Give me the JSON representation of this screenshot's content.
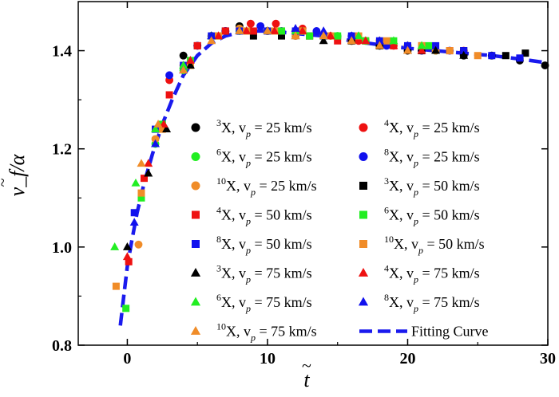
{
  "chart_data": {
    "type": "scatter",
    "xlabel": "t",
    "ylabel": "v_f/α",
    "xlim": [
      -3.5,
      30
    ],
    "ylim": [
      0.8,
      1.5
    ],
    "xticks": [
      0,
      10,
      20,
      30
    ],
    "yticks": [
      0.8,
      1.0,
      1.2,
      1.4
    ],
    "xtick_labels": [
      "0",
      "10",
      "20",
      "30"
    ],
    "ytick_labels": [
      "0.8",
      "1.0",
      "1.2",
      "1.4"
    ],
    "grid": false,
    "legend_position": "inside-lower-right",
    "series": [
      {
        "label": {
          "sup": "3",
          "text": "X,  v",
          "sub": "p",
          "tail": " = 25 km/s"
        },
        "color": "#000000",
        "marker": "circle",
        "points": [
          [
            4,
            1.39
          ],
          [
            6,
            1.43
          ],
          [
            8,
            1.45
          ],
          [
            10,
            1.44
          ],
          [
            12,
            1.44
          ],
          [
            14,
            1.43
          ],
          [
            16,
            1.42
          ],
          [
            18,
            1.41
          ],
          [
            20,
            1.4
          ],
          [
            22,
            1.4
          ],
          [
            24,
            1.39
          ],
          [
            26,
            1.39
          ],
          [
            28,
            1.38
          ],
          [
            29.8,
            1.37
          ]
        ]
      },
      {
        "label": {
          "sup": "4",
          "text": "X,  v",
          "sub": "p",
          "tail": " = 25 km/s"
        },
        "color": "#ee1111",
        "marker": "circle",
        "points": [
          [
            3,
            1.34
          ],
          [
            5,
            1.41
          ],
          [
            7,
            1.44
          ],
          [
            8.8,
            1.455
          ],
          [
            10.6,
            1.455
          ],
          [
            12.5,
            1.445
          ],
          [
            14.5,
            1.43
          ],
          [
            16.5,
            1.42
          ],
          [
            19,
            1.41
          ],
          [
            21,
            1.4
          ],
          [
            24,
            1.4
          ]
        ]
      },
      {
        "label": {
          "sup": "6",
          "text": "X,  v",
          "sub": "p",
          "tail": " = 25 km/s"
        },
        "color": "#22ee22",
        "marker": "circle",
        "points": [
          [
            2,
            1.21
          ],
          [
            4,
            1.36
          ],
          [
            6,
            1.43
          ],
          [
            8,
            1.44
          ],
          [
            10,
            1.44
          ],
          [
            12.5,
            1.44
          ],
          [
            15,
            1.43
          ],
          [
            17,
            1.42
          ],
          [
            20,
            1.41
          ],
          [
            22,
            1.4
          ]
        ]
      },
      {
        "label": {
          "sup": "8",
          "text": "X,  v",
          "sub": "p",
          "tail": " = 25 km/s"
        },
        "color": "#1111ee",
        "marker": "circle",
        "points": [
          [
            3,
            1.35
          ],
          [
            5,
            1.41
          ],
          [
            7,
            1.44
          ],
          [
            9.5,
            1.45
          ],
          [
            11,
            1.44
          ],
          [
            13.5,
            1.44
          ],
          [
            16,
            1.43
          ],
          [
            18.5,
            1.41
          ],
          [
            21,
            1.4
          ],
          [
            23,
            1.4
          ]
        ]
      },
      {
        "label": {
          "sup": "10",
          "text": "X,  v",
          "sub": "p",
          "tail": " = 25 km/s"
        },
        "color": "#f08c28",
        "marker": "circle",
        "points": [
          [
            0.8,
            1.005
          ],
          [
            2,
            1.22
          ],
          [
            4,
            1.37
          ],
          [
            6,
            1.43
          ],
          [
            8,
            1.445
          ],
          [
            10,
            1.44
          ],
          [
            12,
            1.43
          ],
          [
            14,
            1.43
          ],
          [
            16,
            1.42
          ],
          [
            18,
            1.42
          ],
          [
            20,
            1.41
          ],
          [
            22,
            1.4
          ]
        ]
      },
      {
        "label": {
          "sup": "3",
          "text": "X,  v",
          "sub": "p",
          "tail": " = 50 km/s"
        },
        "color": "#000000",
        "marker": "square",
        "points": [
          [
            5,
            1.41
          ],
          [
            7,
            1.44
          ],
          [
            9,
            1.43
          ],
          [
            11,
            1.43
          ],
          [
            13,
            1.43
          ],
          [
            16,
            1.42
          ],
          [
            18,
            1.41
          ],
          [
            21,
            1.4
          ],
          [
            24,
            1.4
          ],
          [
            27,
            1.39
          ],
          [
            28.4,
            1.395
          ]
        ]
      },
      {
        "label": {
          "sup": "4",
          "text": "X,  v",
          "sub": "p",
          "tail": " = 50 km/s"
        },
        "color": "#ee1111",
        "marker": "square",
        "points": [
          [
            0.1,
            0.97
          ],
          [
            1.2,
            1.14
          ],
          [
            3,
            1.31
          ],
          [
            5,
            1.41
          ],
          [
            7,
            1.44
          ],
          [
            9,
            1.44
          ],
          [
            11,
            1.44
          ],
          [
            13,
            1.43
          ],
          [
            15,
            1.42
          ],
          [
            17,
            1.42
          ],
          [
            19,
            1.41
          ],
          [
            21,
            1.41
          ],
          [
            23,
            1.4
          ]
        ]
      },
      {
        "label": {
          "sup": "6",
          "text": "X,  v",
          "sub": "p",
          "tail": " = 50 km/s"
        },
        "color": "#22ee22",
        "marker": "square",
        "points": [
          [
            -0.1,
            0.875
          ],
          [
            1,
            1.1
          ],
          [
            2.5,
            1.25
          ],
          [
            4.5,
            1.38
          ],
          [
            6.5,
            1.43
          ],
          [
            8.5,
            1.44
          ],
          [
            11,
            1.44
          ],
          [
            13,
            1.43
          ],
          [
            15,
            1.43
          ],
          [
            17,
            1.42
          ],
          [
            19,
            1.42
          ],
          [
            21.5,
            1.41
          ]
        ]
      },
      {
        "label": {
          "sup": "8",
          "text": "X,  v",
          "sub": "p",
          "tail": " = 50 km/s"
        },
        "color": "#1111ee",
        "marker": "square",
        "points": [
          [
            0.5,
            1.07
          ],
          [
            2,
            1.24
          ],
          [
            4,
            1.37
          ],
          [
            6,
            1.43
          ],
          [
            8,
            1.44
          ],
          [
            10,
            1.44
          ],
          [
            12,
            1.44
          ],
          [
            14,
            1.43
          ],
          [
            16,
            1.43
          ],
          [
            18,
            1.42
          ],
          [
            20,
            1.41
          ],
          [
            22,
            1.41
          ],
          [
            24,
            1.4
          ],
          [
            26,
            1.39
          ],
          [
            28,
            1.385
          ]
        ]
      },
      {
        "label": {
          "sup": "10",
          "text": "X,  v",
          "sub": "p",
          "tail": " = 50 km/s"
        },
        "color": "#f08c28",
        "marker": "square",
        "points": [
          [
            -0.8,
            0.92
          ],
          [
            1,
            1.11
          ],
          [
            2.5,
            1.24
          ],
          [
            4.5,
            1.37
          ],
          [
            6.5,
            1.43
          ],
          [
            8.5,
            1.44
          ],
          [
            10.5,
            1.44
          ],
          [
            12.5,
            1.44
          ],
          [
            14.5,
            1.43
          ],
          [
            16.5,
            1.43
          ],
          [
            18.5,
            1.42
          ],
          [
            21,
            1.41
          ],
          [
            23,
            1.4
          ],
          [
            25,
            1.39
          ]
        ]
      },
      {
        "label": {
          "sup": "3",
          "text": "X,  v",
          "sub": "p",
          "tail": " = 75 km/s"
        },
        "color": "#000000",
        "marker": "triangle",
        "points": [
          [
            0,
            1.0
          ],
          [
            1.5,
            1.15
          ],
          [
            2.8,
            1.24
          ],
          [
            4.5,
            1.37
          ],
          [
            6,
            1.43
          ],
          [
            8,
            1.44
          ],
          [
            10,
            1.44
          ],
          [
            12,
            1.43
          ],
          [
            14,
            1.42
          ],
          [
            16,
            1.42
          ],
          [
            18,
            1.41
          ],
          [
            20,
            1.4
          ],
          [
            22,
            1.4
          ],
          [
            24,
            1.39
          ]
        ]
      },
      {
        "label": {
          "sup": "4",
          "text": "X,  v",
          "sub": "p",
          "tail": " = 75 km/s"
        },
        "color": "#ee1111",
        "marker": "triangle",
        "points": [
          [
            0,
            0.98
          ],
          [
            1.5,
            1.17
          ],
          [
            2.6,
            1.25
          ],
          [
            4.5,
            1.38
          ],
          [
            6.5,
            1.43
          ],
          [
            8.5,
            1.44
          ],
          [
            10.5,
            1.44
          ],
          [
            12.5,
            1.44
          ],
          [
            14.5,
            1.43
          ],
          [
            17,
            1.42
          ],
          [
            19,
            1.41
          ],
          [
            21,
            1.4
          ]
        ]
      },
      {
        "label": {
          "sup": "6",
          "text": "X,  v",
          "sub": "p",
          "tail": " = 75 km/s"
        },
        "color": "#22ee22",
        "marker": "triangle",
        "points": [
          [
            -0.9,
            1.0
          ],
          [
            0.6,
            1.13
          ],
          [
            2,
            1.24
          ],
          [
            4,
            1.37
          ],
          [
            6,
            1.43
          ],
          [
            8,
            1.44
          ],
          [
            10,
            1.44
          ],
          [
            12,
            1.44
          ],
          [
            14,
            1.43
          ],
          [
            16.5,
            1.43
          ],
          [
            19,
            1.42
          ],
          [
            21,
            1.41
          ]
        ]
      },
      {
        "label": {
          "sup": "8",
          "text": "X,  v",
          "sub": "p",
          "tail": " = 75 km/s"
        },
        "color": "#1111ee",
        "marker": "triangle",
        "points": [
          [
            0.5,
            1.05
          ],
          [
            2,
            1.21
          ],
          [
            4,
            1.36
          ],
          [
            6,
            1.43
          ],
          [
            8,
            1.44
          ],
          [
            10,
            1.44
          ],
          [
            12,
            1.445
          ],
          [
            14,
            1.44
          ],
          [
            16,
            1.43
          ],
          [
            18,
            1.42
          ],
          [
            20,
            1.41
          ]
        ]
      },
      {
        "label": {
          "sup": "10",
          "text": "X,  v",
          "sub": "p",
          "tail": " = 75 km/s"
        },
        "color": "#f08c28",
        "marker": "triangle",
        "points": [
          [
            1,
            1.17
          ],
          [
            2.2,
            1.25
          ],
          [
            4,
            1.36
          ],
          [
            6,
            1.42
          ],
          [
            8,
            1.44
          ],
          [
            10,
            1.44
          ],
          [
            12,
            1.43
          ],
          [
            14,
            1.43
          ],
          [
            16,
            1.42
          ],
          [
            18,
            1.41
          ],
          [
            20,
            1.4
          ]
        ]
      }
    ],
    "fit": {
      "label": "Fitting Curve",
      "color": "#1a1aee",
      "points": [
        [
          -0.5,
          0.84
        ],
        [
          -0.25,
          0.9
        ],
        [
          0,
          0.96
        ],
        [
          0.3,
          1.01
        ],
        [
          0.7,
          1.07
        ],
        [
          1.2,
          1.13
        ],
        [
          1.8,
          1.19
        ],
        [
          2.5,
          1.25
        ],
        [
          3.2,
          1.3
        ],
        [
          4,
          1.35
        ],
        [
          5,
          1.39
        ],
        [
          6,
          1.415
        ],
        [
          7,
          1.43
        ],
        [
          8,
          1.437
        ],
        [
          9,
          1.44
        ],
        [
          10,
          1.44
        ],
        [
          12,
          1.435
        ],
        [
          14,
          1.43
        ],
        [
          16,
          1.42
        ],
        [
          18,
          1.412
        ],
        [
          20,
          1.405
        ],
        [
          22,
          1.4
        ],
        [
          24,
          1.395
        ],
        [
          26,
          1.39
        ],
        [
          28,
          1.383
        ],
        [
          30,
          1.375
        ]
      ]
    }
  }
}
